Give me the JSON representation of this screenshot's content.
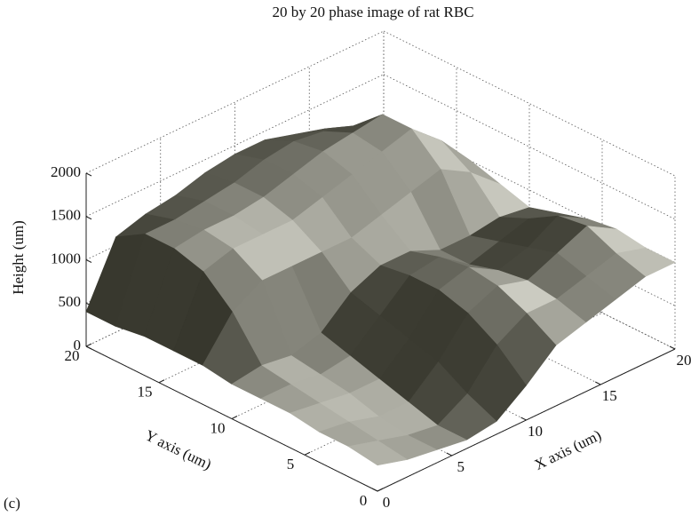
{
  "chart_data": {
    "type": "surface",
    "title": "20 by 20 phase image of rat RBC",
    "xlabel": "X axis (um)",
    "ylabel": "Y axis (um)",
    "zlabel": "Height (um)",
    "panel_label": "(c)",
    "x": [
      0,
      2,
      4,
      6,
      8,
      10,
      12,
      14,
      16,
      18,
      20
    ],
    "y": [
      0,
      2,
      4,
      6,
      8,
      10,
      12,
      14,
      16,
      18,
      20
    ],
    "z": [
      [
        300,
        200,
        150,
        100,
        150,
        400,
        700,
        800,
        900,
        1000,
        1000
      ],
      [
        350,
        250,
        150,
        100,
        300,
        700,
        900,
        900,
        1000,
        1100,
        1000
      ],
      [
        350,
        300,
        200,
        200,
        500,
        900,
        1050,
        950,
        1100,
        1250,
        1050
      ],
      [
        400,
        350,
        300,
        300,
        600,
        1000,
        1100,
        900,
        1000,
        1200,
        1000
      ],
      [
        400,
        400,
        350,
        400,
        700,
        1000,
        1050,
        800,
        900,
        1000,
        900
      ],
      [
        400,
        450,
        400,
        500,
        800,
        950,
        950,
        800,
        800,
        850,
        800
      ],
      [
        450,
        900,
        1100,
        1100,
        1100,
        1100,
        1200,
        1300,
        1400,
        1200,
        900
      ],
      [
        450,
        1200,
        1300,
        1300,
        1300,
        1400,
        1500,
        1600,
        1700,
        1400,
        1000
      ],
      [
        450,
        1300,
        1350,
        1350,
        1400,
        1500,
        1600,
        1650,
        1700,
        1300,
        900
      ],
      [
        400,
        1300,
        1300,
        1350,
        1400,
        1500,
        1550,
        1500,
        1400,
        1100,
        800
      ],
      [
        400,
        1100,
        1200,
        1250,
        1350,
        1400,
        1400,
        1300,
        1200,
        1000,
        800
      ]
    ],
    "xlim": [
      0,
      20
    ],
    "ylim": [
      0,
      20
    ],
    "zlim": [
      0,
      2000
    ],
    "xticks": [
      0,
      5,
      10,
      15,
      20
    ],
    "yticks": [
      0,
      5,
      10,
      15,
      20
    ],
    "zticks": [
      0,
      500,
      1000,
      1500,
      2000
    ],
    "grid": true,
    "colormap": "gray"
  }
}
